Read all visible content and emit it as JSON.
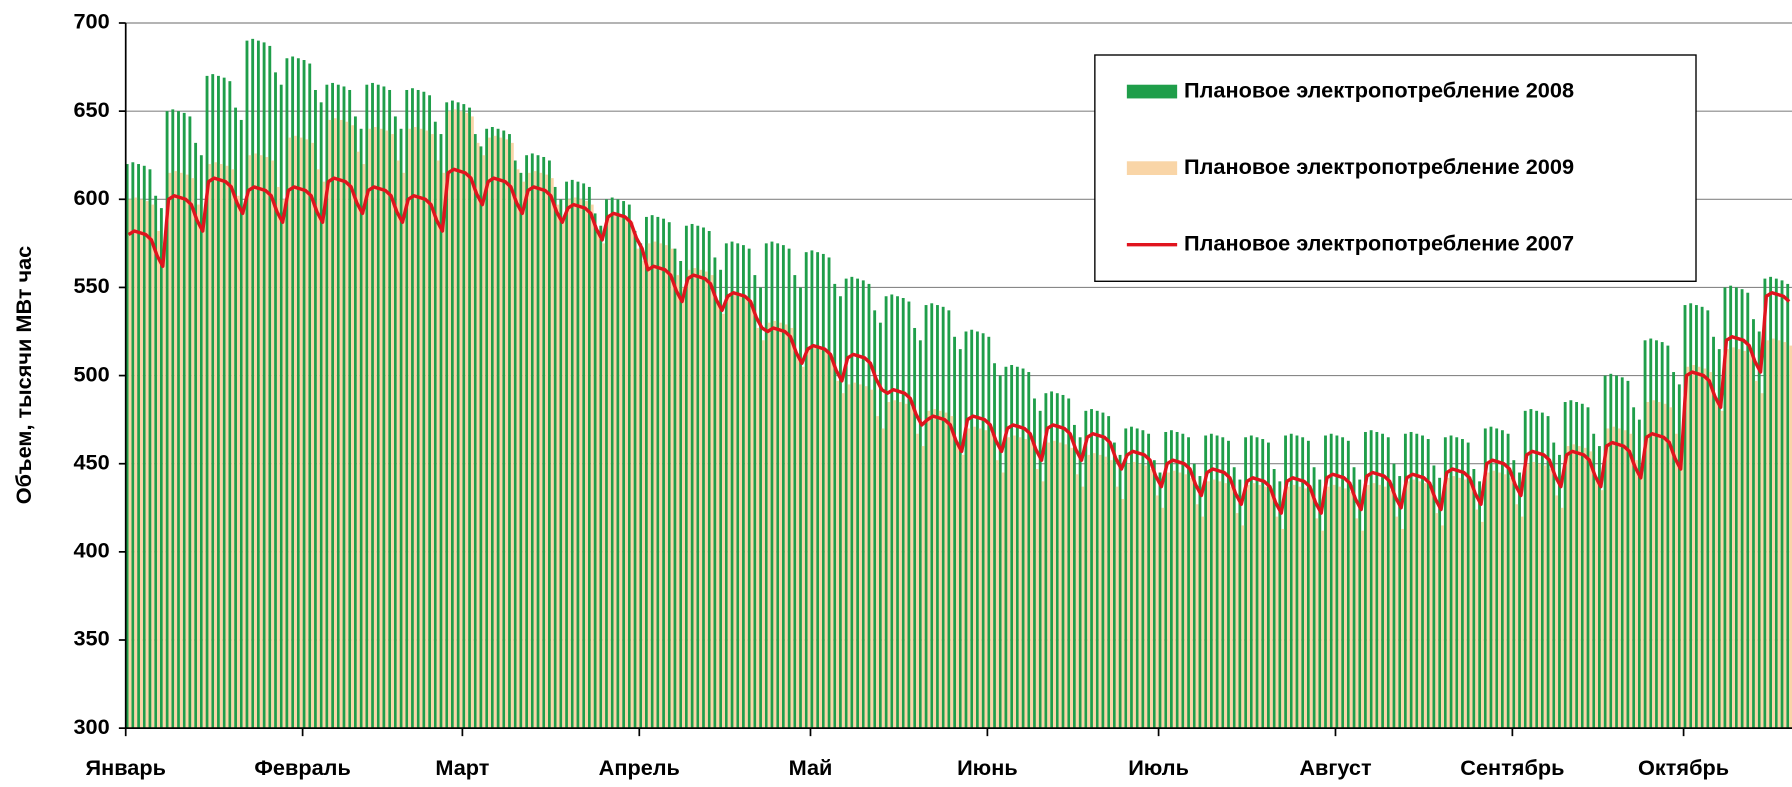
{
  "chart_data": {
    "type": "bar_line",
    "y_label": "Объем, тысячи МВт час",
    "categories": [
      "Январь",
      null,
      null,
      null,
      null,
      null,
      null,
      null,
      null,
      null,
      null,
      null,
      null,
      null,
      null,
      null,
      null,
      null,
      null,
      null,
      null,
      null,
      null,
      null,
      null,
      null,
      null,
      null,
      null,
      null,
      null,
      "Февраль",
      null,
      null,
      null,
      null,
      null,
      null,
      null,
      null,
      null,
      null,
      null,
      null,
      null,
      null,
      null,
      null,
      null,
      null,
      null,
      null,
      null,
      null,
      null,
      null,
      null,
      null,
      null,
      "Март",
      null,
      null,
      null,
      null,
      null,
      null,
      null,
      null,
      null,
      null,
      null,
      null,
      null,
      null,
      null,
      null,
      null,
      null,
      null,
      null,
      null,
      null,
      null,
      null,
      null,
      null,
      null,
      null,
      null,
      null,
      "Апрель",
      null,
      null,
      null,
      null,
      null,
      null,
      null,
      null,
      null,
      null,
      null,
      null,
      null,
      null,
      null,
      null,
      null,
      null,
      null,
      null,
      null,
      null,
      null,
      null,
      null,
      null,
      null,
      null,
      null,
      "Май",
      null,
      null,
      null,
      null,
      null,
      null,
      null,
      null,
      null,
      null,
      null,
      null,
      null,
      null,
      null,
      null,
      null,
      null,
      null,
      null,
      null,
      null,
      null,
      null,
      null,
      null,
      null,
      null,
      null,
      null,
      "Июнь",
      null,
      null,
      null,
      null,
      null,
      null,
      null,
      null,
      null,
      null,
      null,
      null,
      null,
      null,
      null,
      null,
      null,
      null,
      null,
      null,
      null,
      null,
      null,
      null,
      null,
      null,
      null,
      null,
      null,
      "Июль",
      null,
      null,
      null,
      null,
      null,
      null,
      null,
      null,
      null,
      null,
      null,
      null,
      null,
      null,
      null,
      null,
      null,
      null,
      null,
      null,
      null,
      null,
      null,
      null,
      null,
      null,
      null,
      null,
      null,
      null,
      "Август",
      null,
      null,
      null,
      null,
      null,
      null,
      null,
      null,
      null,
      null,
      null,
      null,
      null,
      null,
      null,
      null,
      null,
      null,
      null,
      null,
      null,
      null,
      null,
      null,
      null,
      null,
      null,
      null,
      null,
      null,
      "Сентябрь",
      null,
      null,
      null,
      null,
      null,
      null,
      null,
      null,
      null,
      null,
      null,
      null,
      null,
      null,
      null,
      null,
      null,
      null,
      null,
      null,
      null,
      null,
      null,
      null,
      null,
      null,
      null,
      null,
      null,
      "Октябрь",
      null,
      null,
      null,
      null,
      null,
      null,
      null,
      null,
      null,
      null,
      null,
      null,
      null,
      null,
      null,
      null,
      null,
      null
    ],
    "series": [
      {
        "name": "Плановое электропотребление 2008",
        "kind": "bar",
        "color": "#1f9e4a",
        "values": [
          620,
          621,
          620,
          619,
          617,
          602,
          595,
          650,
          651,
          650,
          649,
          647,
          632,
          625,
          670,
          671,
          670,
          669,
          667,
          652,
          645,
          690,
          691,
          690,
          689,
          687,
          672,
          665,
          680,
          681,
          680,
          679,
          677,
          662,
          655,
          665,
          666,
          665,
          664,
          662,
          647,
          640,
          665,
          666,
          665,
          664,
          662,
          647,
          640,
          662,
          663,
          662,
          661,
          659,
          644,
          637,
          655,
          656,
          655,
          654,
          652,
          637,
          630,
          640,
          641,
          640,
          639,
          637,
          622,
          615,
          625,
          626,
          625,
          624,
          622,
          607,
          600,
          610,
          611,
          610,
          609,
          607,
          592,
          585,
          600,
          601,
          600,
          599,
          597,
          582,
          575,
          590,
          591,
          590,
          589,
          587,
          572,
          565,
          585,
          586,
          585,
          584,
          582,
          567,
          560,
          575,
          576,
          575,
          574,
          572,
          557,
          550,
          575,
          576,
          575,
          574,
          572,
          557,
          550,
          570,
          571,
          570,
          569,
          567,
          552,
          545,
          555,
          556,
          555,
          554,
          552,
          537,
          530,
          545,
          546,
          545,
          544,
          542,
          527,
          520,
          540,
          541,
          540,
          539,
          537,
          522,
          515,
          525,
          526,
          525,
          524,
          522,
          507,
          500,
          505,
          506,
          505,
          504,
          502,
          487,
          480,
          490,
          491,
          490,
          489,
          487,
          472,
          465,
          480,
          481,
          480,
          479,
          477,
          462,
          455,
          470,
          471,
          470,
          469,
          467,
          452,
          445,
          468,
          469,
          468,
          467,
          465,
          450,
          443,
          466,
          467,
          466,
          465,
          463,
          448,
          441,
          465,
          466,
          465,
          464,
          462,
          447,
          440,
          466,
          467,
          466,
          465,
          463,
          448,
          441,
          466,
          467,
          466,
          465,
          463,
          448,
          441,
          468,
          469,
          468,
          467,
          465,
          450,
          443,
          467,
          468,
          467,
          466,
          464,
          449,
          442,
          465,
          466,
          465,
          464,
          462,
          447,
          440,
          470,
          471,
          470,
          469,
          467,
          452,
          445,
          480,
          481,
          480,
          479,
          477,
          462,
          455,
          485,
          486,
          485,
          484,
          482,
          467,
          460,
          500,
          501,
          500,
          499,
          497,
          482,
          475,
          520,
          521,
          520,
          519,
          517,
          502,
          495,
          540,
          541,
          540,
          539,
          537,
          522,
          515,
          550,
          551,
          550,
          549,
          547,
          532,
          525,
          555,
          556,
          555,
          554,
          552
        ]
      },
      {
        "name": "Плановое электропотребление 2009",
        "kind": "bar",
        "color": "#f9d5a7",
        "values": [
          600,
          601,
          600,
          599,
          597,
          582,
          575,
          615,
          616,
          615,
          614,
          612,
          597,
          590,
          620,
          621,
          620,
          619,
          617,
          602,
          595,
          625,
          626,
          625,
          624,
          622,
          607,
          600,
          635,
          636,
          635,
          634,
          632,
          617,
          610,
          645,
          646,
          645,
          644,
          642,
          627,
          620,
          640,
          641,
          640,
          639,
          637,
          622,
          615,
          640,
          641,
          640,
          639,
          637,
          622,
          615,
          650,
          651,
          650,
          649,
          647,
          632,
          625,
          635,
          636,
          635,
          634,
          632,
          617,
          610,
          615,
          616,
          615,
          614,
          612,
          597,
          590,
          600,
          601,
          600,
          599,
          597,
          582,
          575,
          590,
          591,
          590,
          589,
          587,
          572,
          565,
          575,
          576,
          575,
          574,
          572,
          557,
          550,
          560,
          561,
          560,
          559,
          557,
          542,
          535,
          545,
          546,
          545,
          544,
          542,
          527,
          520,
          530,
          531,
          530,
          529,
          527,
          512,
          505,
          515,
          516,
          515,
          514,
          512,
          497,
          490,
          495,
          496,
          495,
          494,
          492,
          477,
          470,
          485,
          486,
          485,
          484,
          482,
          467,
          460,
          480,
          481,
          480,
          479,
          477,
          462,
          455,
          470,
          471,
          470,
          469,
          467,
          452,
          445,
          465,
          466,
          465,
          464,
          462,
          447,
          440,
          462,
          463,
          462,
          461,
          459,
          444,
          437,
          455,
          456,
          455,
          454,
          452,
          437,
          430,
          450,
          451,
          450,
          449,
          447,
          432,
          425,
          445,
          446,
          445,
          444,
          442,
          427,
          420,
          440,
          441,
          440,
          439,
          437,
          422,
          415,
          438,
          439,
          438,
          437,
          435,
          420,
          413,
          437,
          438,
          437,
          436,
          434,
          419,
          412,
          437,
          438,
          437,
          436,
          434,
          419,
          412,
          438,
          439,
          438,
          437,
          435,
          420,
          413,
          440,
          441,
          440,
          439,
          437,
          422,
          415,
          442,
          443,
          442,
          441,
          439,
          424,
          417,
          445,
          446,
          445,
          444,
          442,
          427,
          420,
          450,
          451,
          450,
          449,
          447,
          432,
          425,
          460,
          461,
          460,
          459,
          457,
          442,
          435,
          470,
          471,
          470,
          469,
          467,
          452,
          445,
          485,
          486,
          485,
          484,
          482,
          467,
          460,
          505,
          506,
          505,
          504,
          502,
          487,
          480,
          515,
          516,
          515,
          514,
          512,
          497,
          490,
          520,
          521,
          520,
          519,
          517
        ]
      },
      {
        "name": "Плановое электропотребление 2007",
        "kind": "line",
        "color": "#e0141e",
        "values": [
          580,
          582,
          581,
          580,
          577,
          568,
          562,
          600,
          602,
          601,
          600,
          597,
          588,
          582,
          610,
          612,
          611,
          610,
          607,
          598,
          592,
          605,
          607,
          606,
          605,
          602,
          593,
          587,
          605,
          607,
          606,
          605,
          602,
          593,
          587,
          610,
          612,
          611,
          610,
          607,
          598,
          592,
          605,
          607,
          606,
          605,
          602,
          593,
          587,
          600,
          602,
          601,
          600,
          597,
          588,
          582,
          615,
          617,
          616,
          615,
          612,
          603,
          597,
          610,
          612,
          611,
          610,
          607,
          598,
          592,
          605,
          607,
          606,
          605,
          602,
          593,
          587,
          595,
          597,
          596,
          595,
          592,
          583,
          577,
          590,
          592,
          591,
          590,
          587,
          578,
          572,
          560,
          562,
          561,
          560,
          557,
          548,
          542,
          555,
          557,
          556,
          555,
          552,
          543,
          537,
          545,
          547,
          546,
          545,
          542,
          533,
          527,
          525,
          527,
          526,
          525,
          522,
          513,
          507,
          515,
          517,
          516,
          515,
          512,
          503,
          497,
          510,
          512,
          511,
          510,
          507,
          498,
          492,
          490,
          492,
          491,
          490,
          487,
          478,
          472,
          475,
          477,
          476,
          475,
          472,
          463,
          457,
          475,
          477,
          476,
          475,
          472,
          463,
          457,
          470,
          472,
          471,
          470,
          467,
          458,
          452,
          470,
          472,
          471,
          470,
          467,
          458,
          452,
          465,
          467,
          466,
          465,
          462,
          453,
          447,
          455,
          457,
          456,
          455,
          452,
          443,
          437,
          450,
          452,
          451,
          450,
          447,
          438,
          432,
          445,
          447,
          446,
          445,
          442,
          433,
          427,
          440,
          442,
          441,
          440,
          437,
          428,
          422,
          440,
          442,
          441,
          440,
          437,
          428,
          422,
          442,
          444,
          443,
          442,
          439,
          430,
          424,
          443,
          445,
          444,
          443,
          440,
          431,
          425,
          442,
          444,
          443,
          442,
          439,
          430,
          424,
          445,
          447,
          446,
          445,
          442,
          433,
          427,
          450,
          452,
          451,
          450,
          447,
          438,
          432,
          455,
          457,
          456,
          455,
          452,
          443,
          437,
          455,
          457,
          456,
          455,
          452,
          443,
          437,
          460,
          462,
          461,
          460,
          457,
          448,
          442,
          465,
          467,
          466,
          465,
          462,
          453,
          447,
          500,
          502,
          501,
          500,
          497,
          488,
          482,
          520,
          522,
          521,
          520,
          517,
          508,
          502,
          545,
          547,
          546,
          545,
          542
        ]
      }
    ],
    "ylim": [
      300,
      700
    ],
    "yticks": [
      300,
      350,
      400,
      450,
      500,
      550,
      600,
      650,
      700
    ],
    "grid": true,
    "legend": "upper right"
  }
}
